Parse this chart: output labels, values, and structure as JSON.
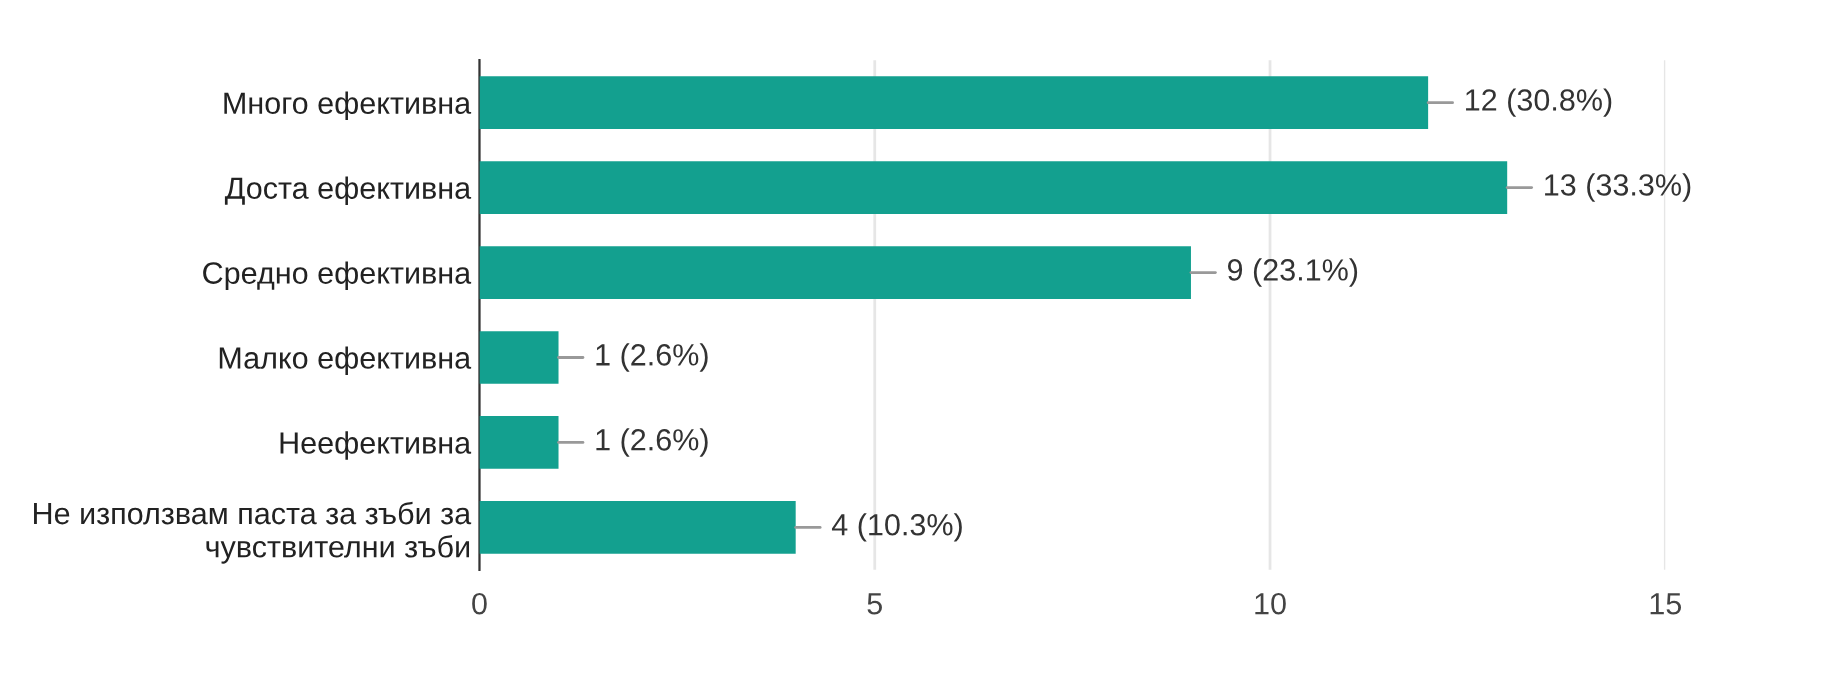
{
  "chart_data": {
    "type": "bar",
    "orientation": "horizontal",
    "categories": [
      "Много ефективна",
      "Доста ефективна",
      "Средно ефективна",
      "Малко ефективна",
      "Неефективна",
      "Не използвам паста за зъби за\nчувствителни зъби"
    ],
    "values": [
      12,
      13,
      9,
      1,
      1,
      4
    ],
    "value_labels": [
      "12 (30.8%)",
      "13 (33.3%)",
      "9 (23.1%)",
      "1 (2.6%)",
      "1 (2.6%)",
      "4 (10.3%)"
    ],
    "color": "#13a08f",
    "xlim": [
      0,
      15
    ],
    "xticks": [
      0,
      5,
      10,
      15
    ],
    "grid": "x"
  }
}
